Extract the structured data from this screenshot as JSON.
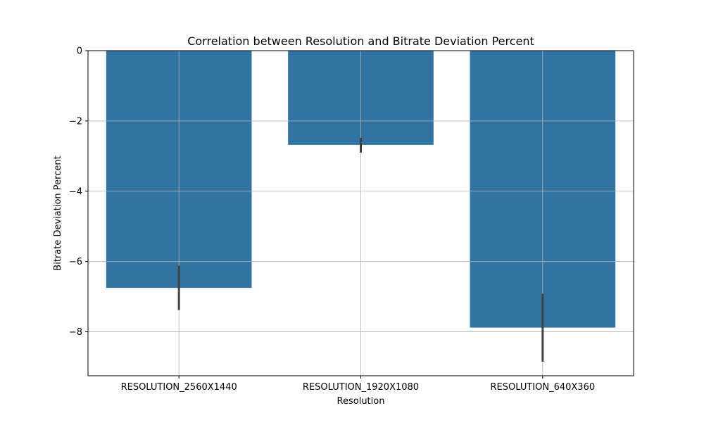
{
  "chart_data": {
    "type": "bar",
    "title": "Correlation between Resolution and Bitrate Deviation Percent",
    "xlabel": "Resolution",
    "ylabel": "Bitrate Deviation Percent",
    "categories": [
      "RESOLUTION_2560X1440",
      "RESOLUTION_1920X1080",
      "RESOLUTION_640X360"
    ],
    "values": [
      -6.75,
      -2.68,
      -7.88
    ],
    "error_bars": [
      {
        "low": -7.38,
        "high": -6.12
      },
      {
        "low": -2.9,
        "high": -2.48
      },
      {
        "low": -8.85,
        "high": -6.92
      }
    ],
    "ylim": [
      -9.25,
      0
    ],
    "yticks": [
      0,
      -2,
      -4,
      -6,
      -8
    ],
    "ytick_labels": [
      "0",
      "−2",
      "−4",
      "−6",
      "−8"
    ],
    "grid": true,
    "bar_color": "#3274a1",
    "errorbar_color": "#424242",
    "grid_color": "#b0b0b0"
  }
}
